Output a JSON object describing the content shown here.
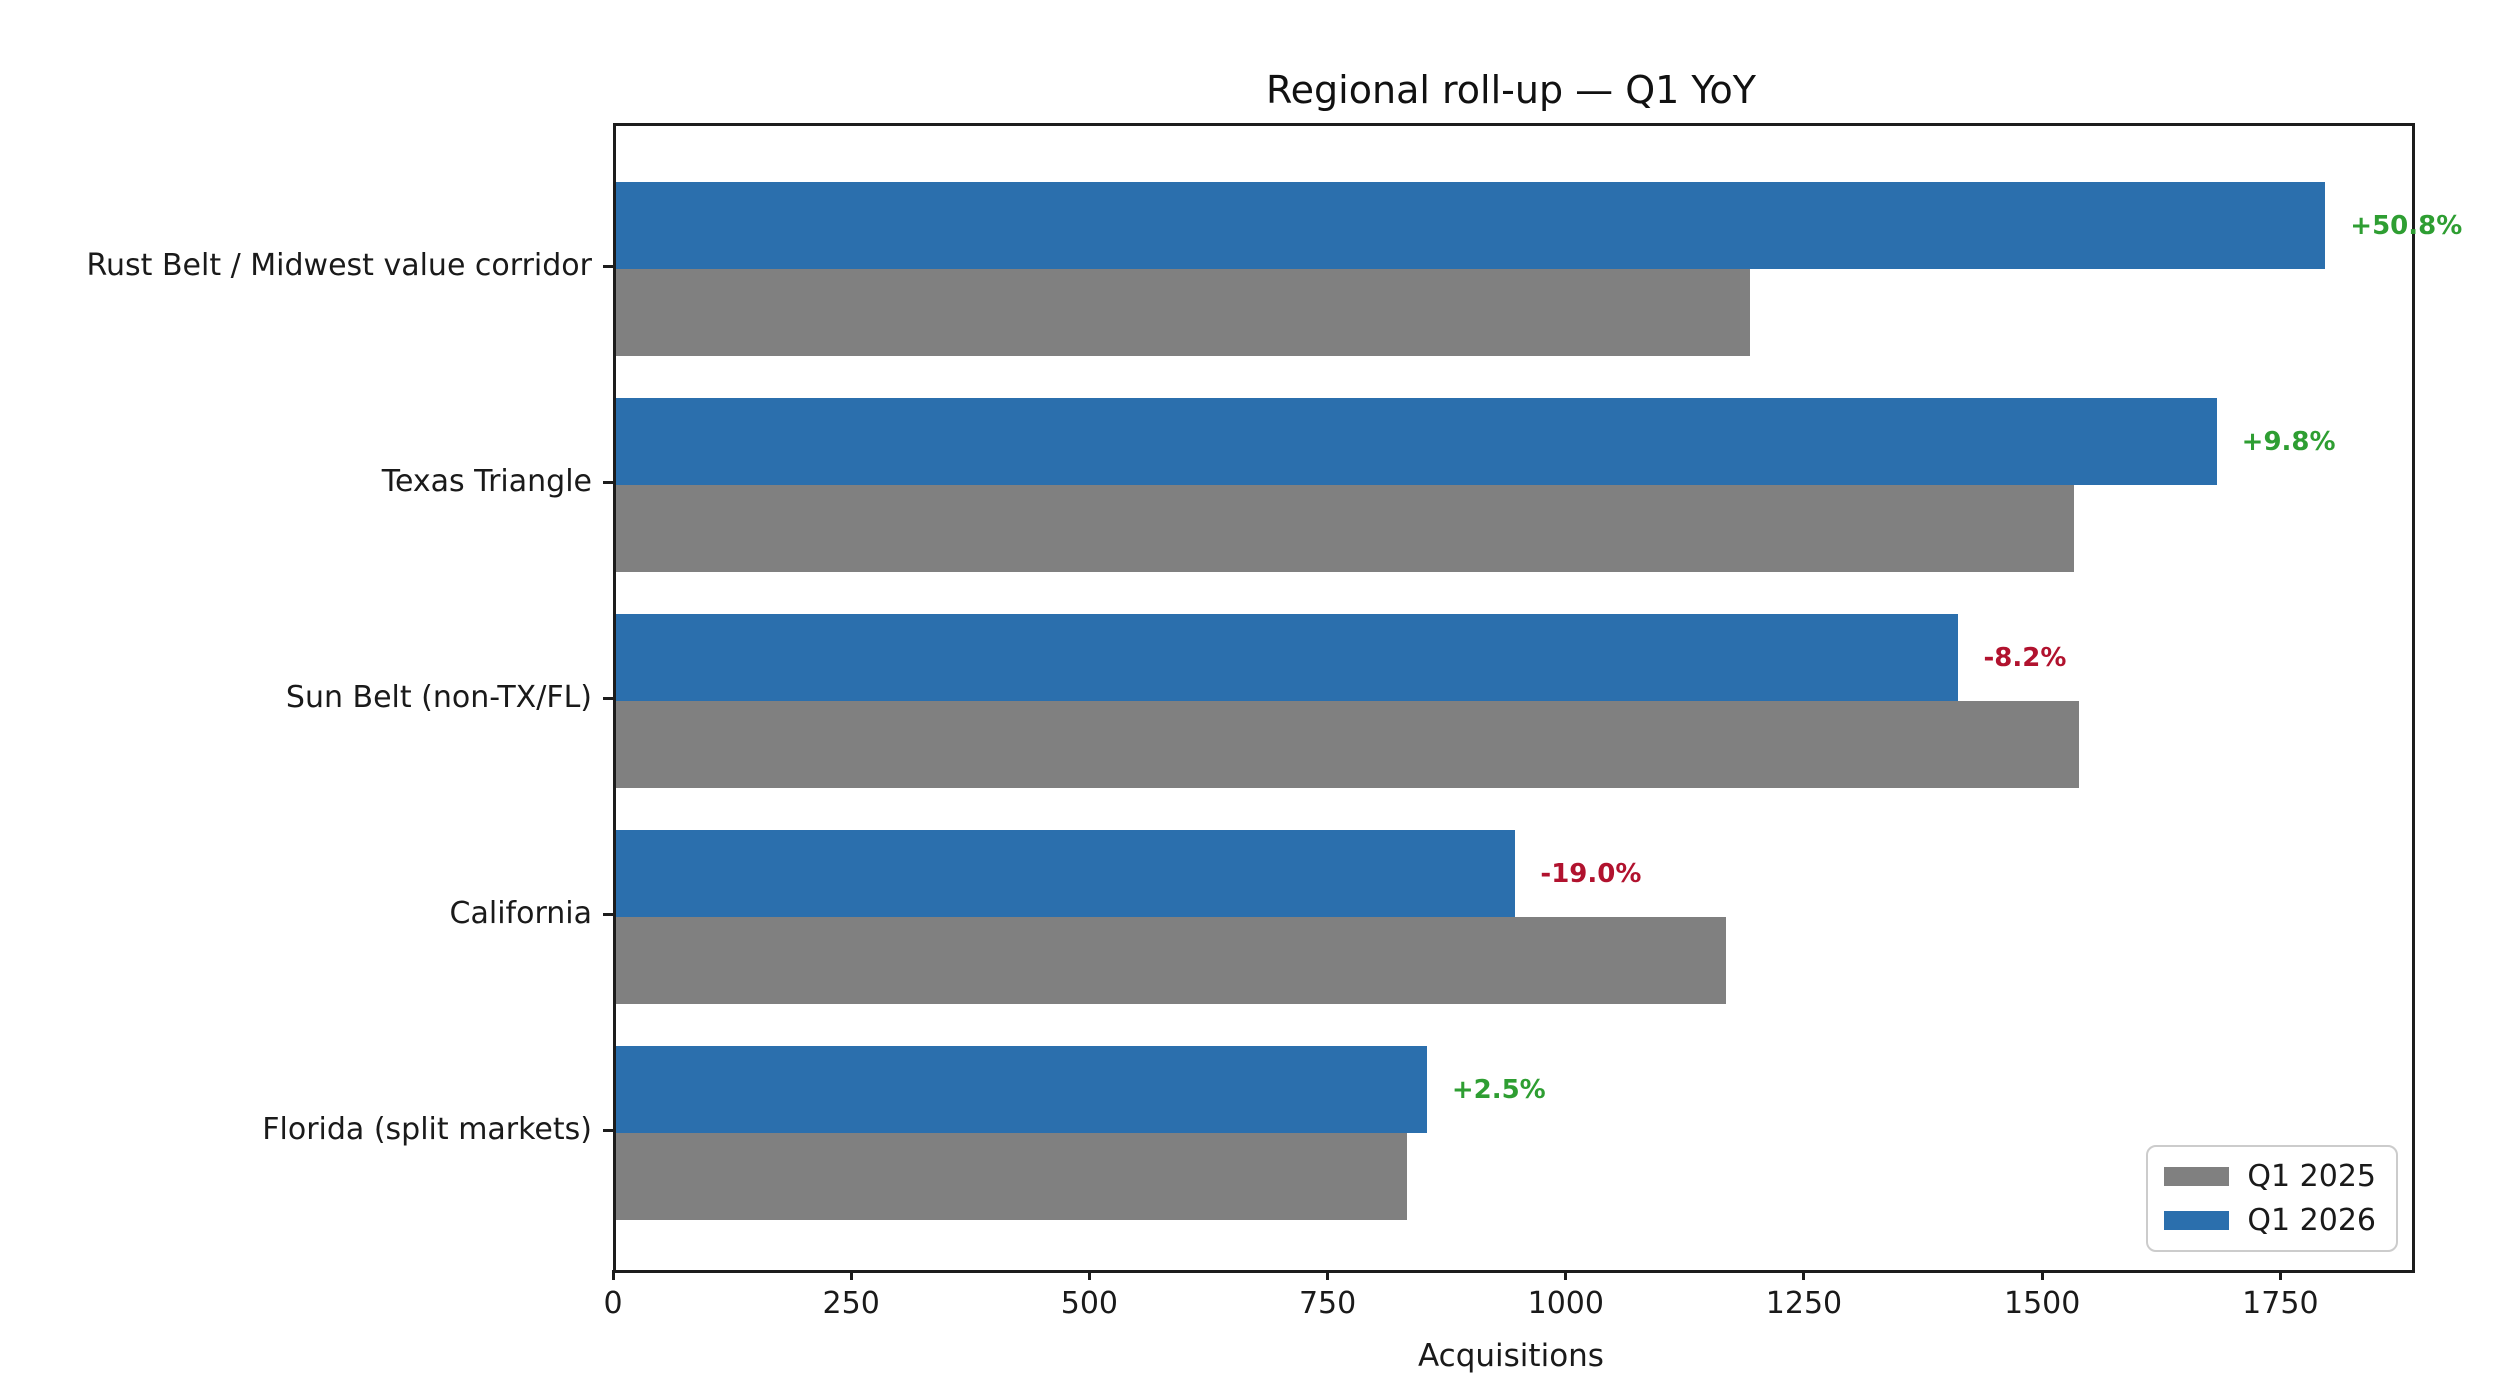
{
  "chart_data": {
    "type": "bar",
    "orientation": "horizontal",
    "title": "Regional roll-up — Q1 YoY",
    "xlabel": "Acquisitions",
    "categories": [
      "Rust Belt / Midwest value corridor",
      "Texas Triangle",
      "Sun Belt (non-TX/FL)",
      "California",
      "Florida (split markets)"
    ],
    "series": [
      {
        "name": "Q1 2025",
        "color": "#808080",
        "values": [
          1190,
          1530,
          1535,
          1165,
          830
        ]
      },
      {
        "name": "Q1 2026",
        "color": "#2b6fad",
        "values": [
          1794,
          1680,
          1409,
          944,
          851
        ]
      }
    ],
    "annotations": [
      {
        "label": "+50.8%",
        "color": "#2e9e32"
      },
      {
        "label": "+9.8%",
        "color": "#2e9e32"
      },
      {
        "label": "-8.2%",
        "color": "#b1122e"
      },
      {
        "label": "-19.0%",
        "color": "#b1122e"
      },
      {
        "label": "+2.5%",
        "color": "#2e9e32"
      }
    ],
    "annotation_colors": {
      "positive": "#2e9e32",
      "negative": "#b1122e"
    },
    "xlim": [
      0,
      1885
    ],
    "xticks": [
      0,
      250,
      500,
      750,
      1000,
      1250,
      1500,
      1750
    ],
    "legend_position": "lower right",
    "legend_order": [
      "Q1 2025",
      "Q1 2026"
    ],
    "group_order_top_to_bottom": [
      "Q1 2026",
      "Q1 2025"
    ],
    "grid": false
  }
}
